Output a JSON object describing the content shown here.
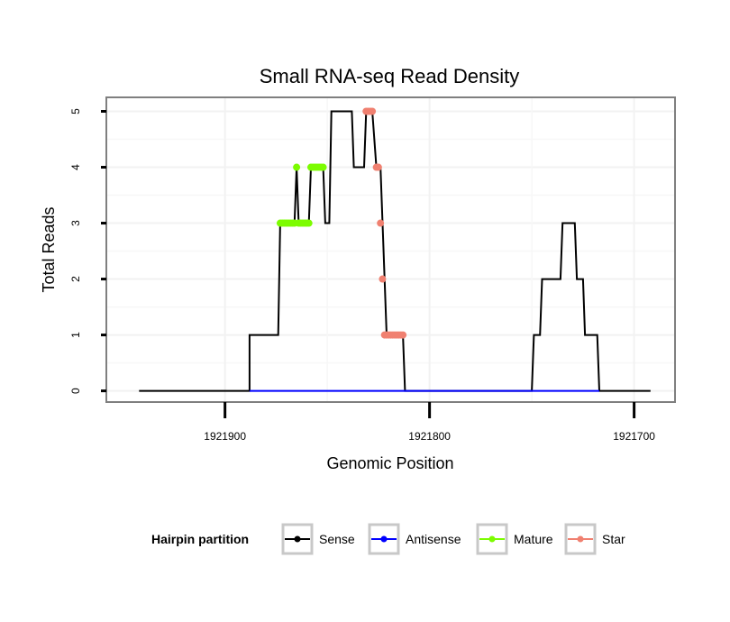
{
  "chart_data": {
    "type": "line",
    "title": "Small RNA-seq Read Density",
    "xlabel": "Genomic Position",
    "ylabel": "Total Reads",
    "xlim": [
      1921958,
      1921680
    ],
    "ylim": [
      -0.2,
      5.25
    ],
    "x_reversed": true,
    "xticks": [
      1921900,
      1921800,
      1921700
    ],
    "xtick_labels": [
      "1921900",
      "1921800",
      "1921700"
    ],
    "yticks": [
      0,
      1,
      2,
      3,
      4,
      5
    ],
    "ytick_labels": [
      "0",
      "1",
      "2",
      "3",
      "4",
      "5"
    ],
    "grid": true,
    "legend_title": "Hairpin partition",
    "legend_position": "bottom",
    "series": [
      {
        "name": "Sense",
        "color": "#000000",
        "style": "line",
        "points": [
          [
            1921942,
            0
          ],
          [
            1921888,
            0
          ],
          [
            1921888,
            1
          ],
          [
            1921888,
            1
          ],
          [
            1921874,
            1
          ],
          [
            1921873,
            3
          ],
          [
            1921866,
            3
          ],
          [
            1921865,
            4
          ],
          [
            1921864,
            3
          ],
          [
            1921859,
            3
          ],
          [
            1921858,
            4
          ],
          [
            1921852,
            4
          ],
          [
            1921851,
            3
          ],
          [
            1921849,
            3
          ],
          [
            1921848,
            5
          ],
          [
            1921838,
            5
          ],
          [
            1921837,
            4
          ],
          [
            1921832,
            4
          ],
          [
            1921831,
            5
          ],
          [
            1921828,
            5
          ],
          [
            1921826,
            4
          ],
          [
            1921824,
            4
          ],
          [
            1921821,
            1
          ],
          [
            1921813,
            1
          ],
          [
            1921812,
            0
          ],
          [
            1921750,
            0
          ],
          [
            1921749,
            1
          ],
          [
            1921746,
            1
          ],
          [
            1921745,
            2
          ],
          [
            1921736,
            2
          ],
          [
            1921735,
            3
          ],
          [
            1921729,
            3
          ],
          [
            1921728,
            2
          ],
          [
            1921725,
            2
          ],
          [
            1921724,
            1
          ],
          [
            1921718,
            1
          ],
          [
            1921717,
            0
          ],
          [
            1921692,
            0
          ]
        ]
      },
      {
        "name": "Antisense",
        "color": "#0000ff",
        "style": "line",
        "points": [
          [
            1921888,
            0
          ],
          [
            1921812,
            0
          ],
          [
            1921750,
            0
          ],
          [
            1921717,
            0
          ]
        ]
      },
      {
        "name": "Mature",
        "color": "#7cfc00",
        "style": "points",
        "points": [
          [
            1921873,
            3
          ],
          [
            1921872,
            3
          ],
          [
            1921871,
            3
          ],
          [
            1921870,
            3
          ],
          [
            1921869,
            3
          ],
          [
            1921868,
            3
          ],
          [
            1921867,
            3
          ],
          [
            1921866,
            3
          ],
          [
            1921865,
            4
          ],
          [
            1921864,
            3
          ],
          [
            1921863,
            3
          ],
          [
            1921862,
            3
          ],
          [
            1921861,
            3
          ],
          [
            1921860,
            3
          ],
          [
            1921859,
            3
          ],
          [
            1921858,
            4
          ],
          [
            1921857,
            4
          ],
          [
            1921856,
            4
          ],
          [
            1921855,
            4
          ],
          [
            1921854,
            4
          ],
          [
            1921853,
            4
          ],
          [
            1921852,
            4
          ]
        ]
      },
      {
        "name": "Star",
        "color": "#f08070",
        "style": "points",
        "points": [
          [
            1921831,
            5
          ],
          [
            1921830,
            5
          ],
          [
            1921829,
            5
          ],
          [
            1921828,
            5
          ],
          [
            1921826,
            4
          ],
          [
            1921825,
            4
          ],
          [
            1921824,
            3
          ],
          [
            1921823,
            2
          ],
          [
            1921822,
            1
          ],
          [
            1921821,
            1
          ],
          [
            1921820,
            1
          ],
          [
            1921819,
            1
          ],
          [
            1921818,
            1
          ],
          [
            1921817,
            1
          ],
          [
            1921816,
            1
          ],
          [
            1921815,
            1
          ],
          [
            1921814,
            1
          ],
          [
            1921813,
            1
          ]
        ]
      }
    ]
  }
}
